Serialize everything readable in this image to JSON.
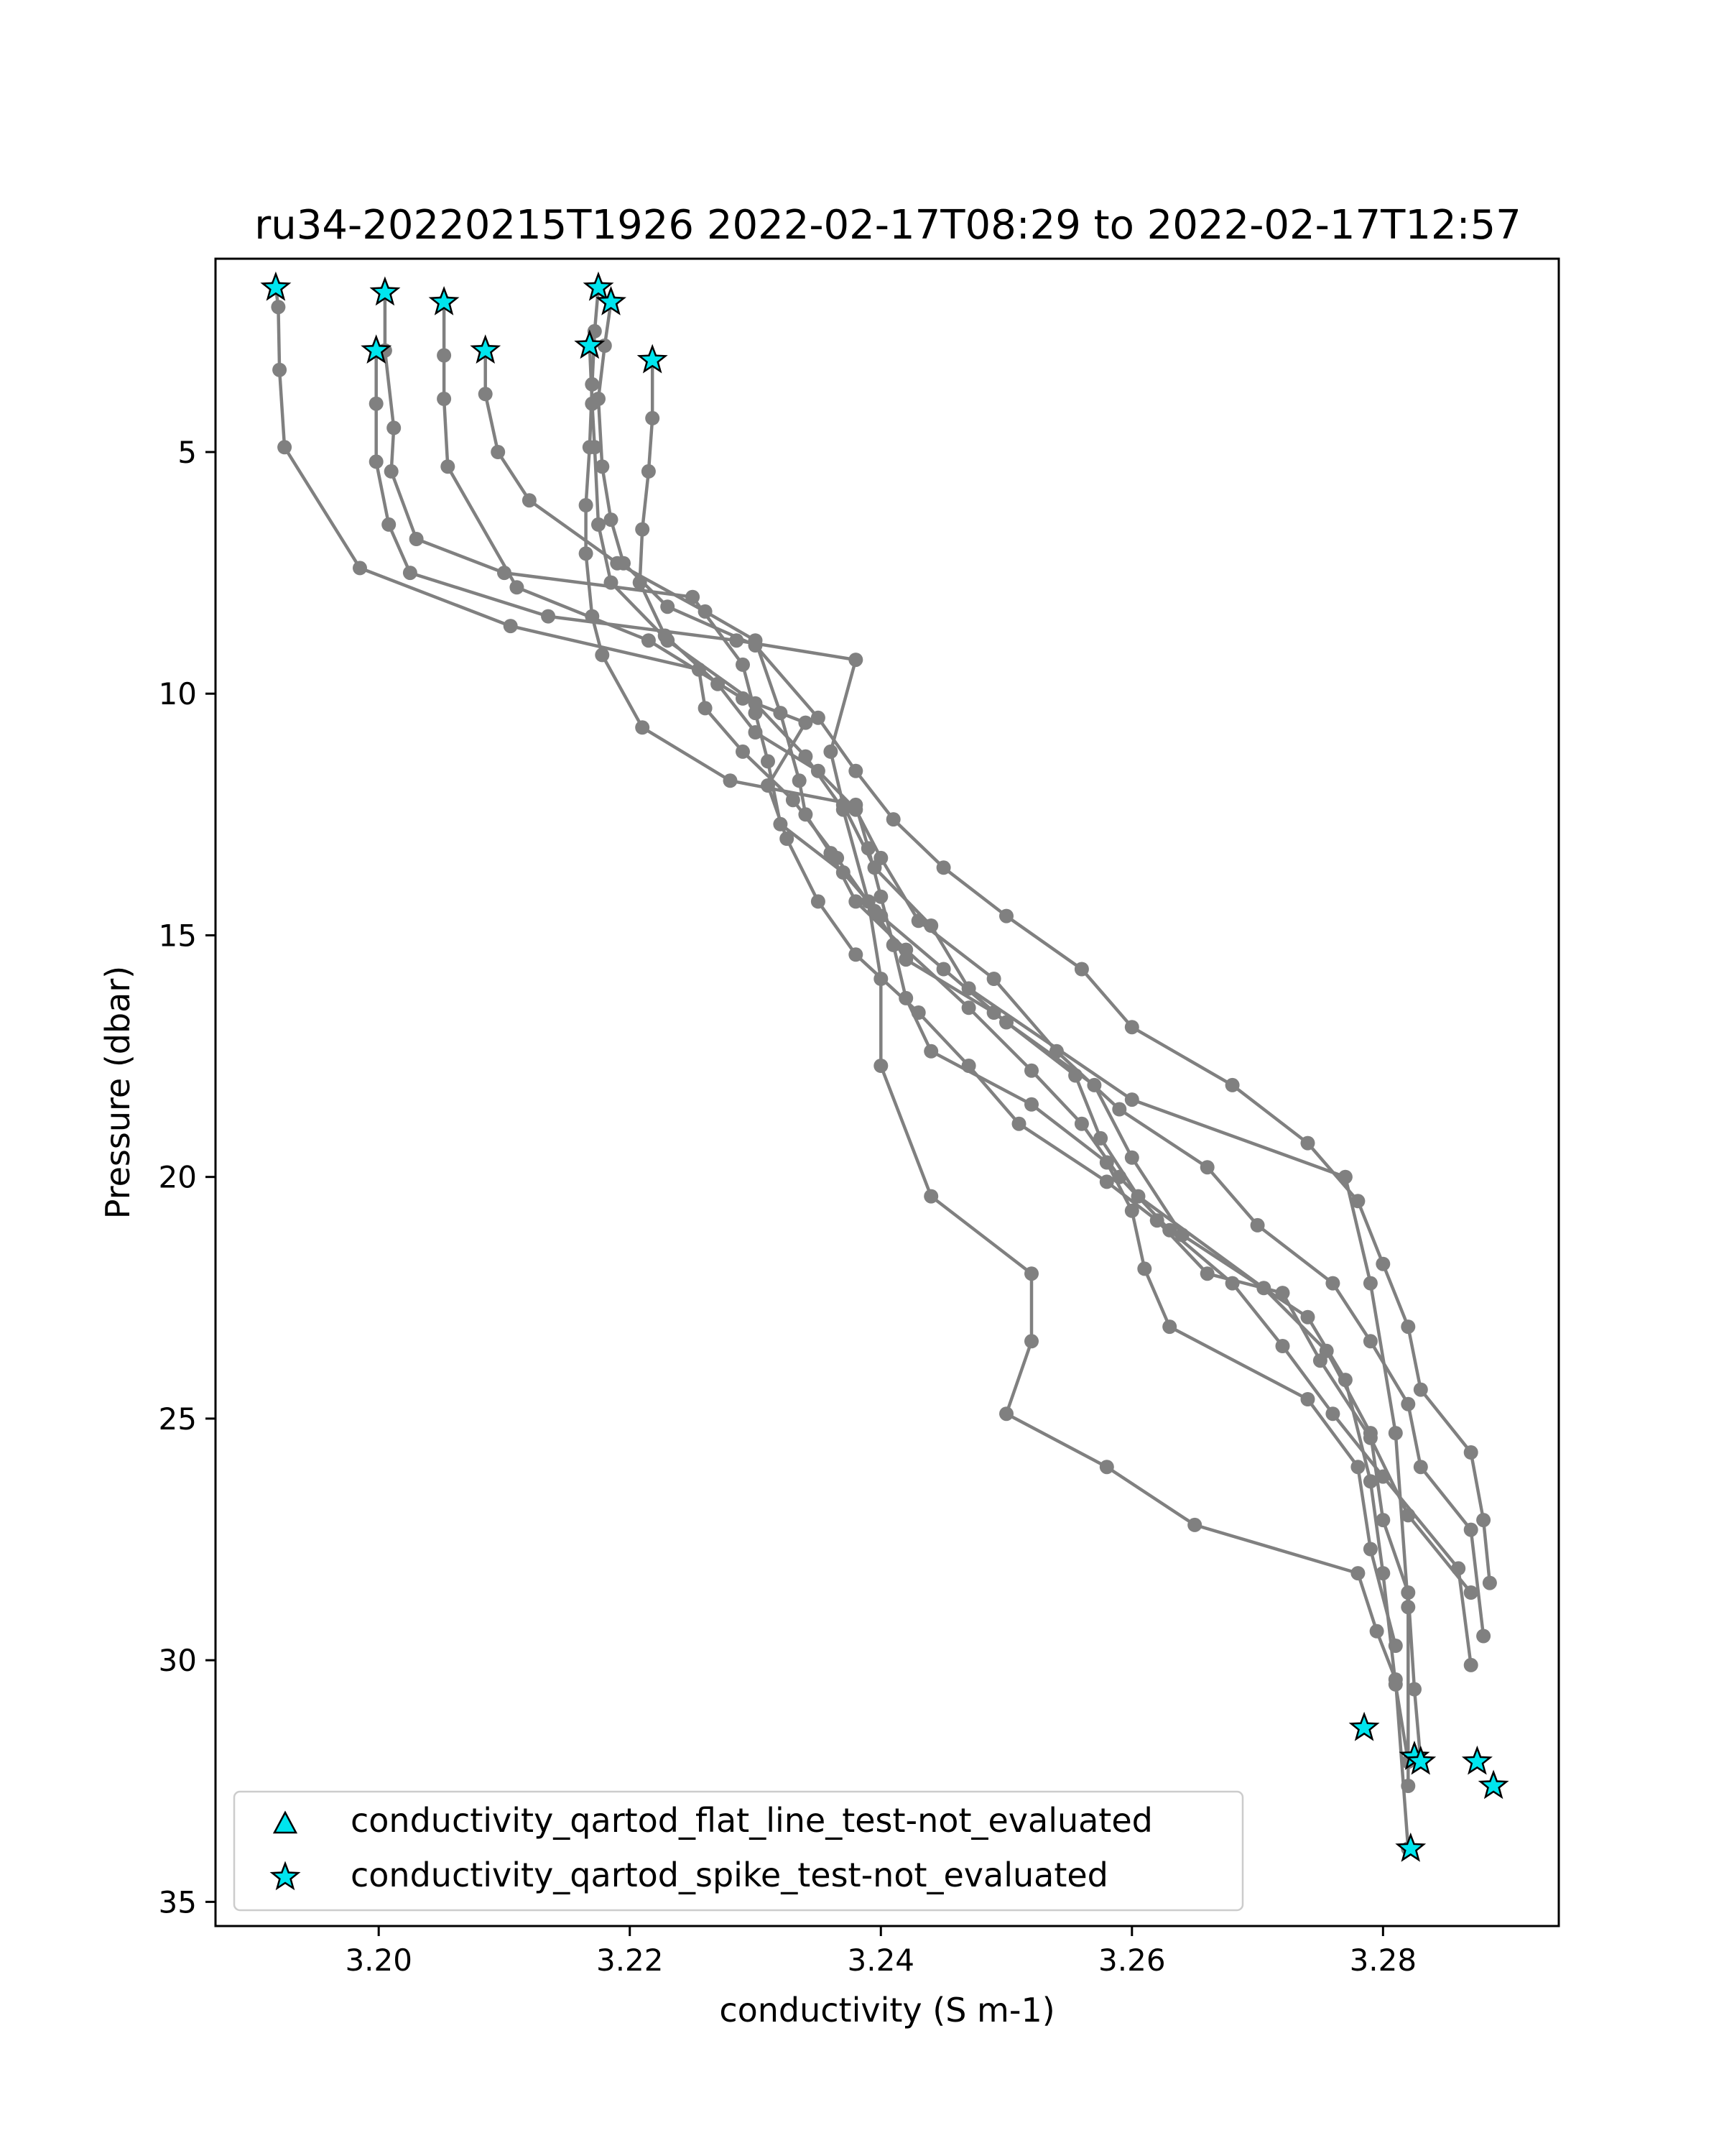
{
  "chart_data": {
    "type": "line",
    "title": "ru34-20220215T1926 2022-02-17T08:29 to 2022-02-17T12:57",
    "xlabel": "conductivity (S m-1)",
    "ylabel": "Pressure (dbar)",
    "xlim": [
      3.187,
      3.294
    ],
    "ylim": [
      35.5,
      1.0
    ],
    "y_inverted": true,
    "xticks": [
      3.2,
      3.22,
      3.24,
      3.26,
      3.28
    ],
    "xtick_labels": [
      "3.20",
      "3.22",
      "3.24",
      "3.26",
      "3.28"
    ],
    "yticks": [
      5,
      10,
      15,
      20,
      25,
      30,
      35
    ],
    "ytick_labels": [
      "5",
      "10",
      "15",
      "20",
      "25",
      "30",
      "35"
    ],
    "grid": false,
    "legend_position": "lower-left",
    "line_color": "#808080",
    "marker_color": "#00e5ee",
    "legend": [
      {
        "label": "conductivity_qartod_flat_line_test-not_evaluated",
        "marker": "triangle"
      },
      {
        "label": "conductivity_qartod_spike_test-not_evaluated",
        "marker": "star"
      }
    ],
    "series": [
      {
        "x": [
          3.1918,
          3.192,
          3.1921,
          3.1925,
          3.1985,
          3.2105,
          3.2255,
          3.226,
          3.229,
          3.233,
          3.2365,
          3.2395,
          3.242,
          3.249,
          3.2555,
          3.2575,
          3.2605,
          3.2705,
          3.2755,
          3.279,
          3.28,
          3.282,
          3.2825,
          3.283
        ],
        "y": [
          1.6,
          2.0,
          3.3,
          4.9,
          7.4,
          8.6,
          9.5,
          10.3,
          11.2,
          12.2,
          13.4,
          14.5,
          15.5,
          16.6,
          17.9,
          19.2,
          20.4,
          22.3,
          23.6,
          25.3,
          27.1,
          28.6,
          30.6,
          32.1
        ]
      },
      {
        "x": [
          3.2005,
          3.2005,
          3.2012,
          3.201,
          3.203,
          3.21,
          3.225,
          3.229,
          3.23,
          3.231,
          3.232,
          3.237,
          3.24,
          3.245,
          3.25,
          3.257,
          3.26,
          3.264,
          3.274,
          3.277,
          3.279,
          3.28,
          3.281,
          3.282
        ],
        "y": [
          1.7,
          2.9,
          4.5,
          5.4,
          6.8,
          7.5,
          8.0,
          9.4,
          10.4,
          11.4,
          12.7,
          13.7,
          14.6,
          15.7,
          16.8,
          18.1,
          19.6,
          21.2,
          22.9,
          24.2,
          26.3,
          28.2,
          30.5,
          32.1
        ]
      },
      {
        "x": [
          3.1998,
          3.1998,
          3.1998,
          3.2008,
          3.2025,
          3.2135,
          3.2285,
          3.238,
          3.236,
          3.237,
          3.2395,
          3.244,
          3.247,
          3.26,
          3.277,
          3.279,
          3.281,
          3.282,
          3.282
        ],
        "y": [
          2.9,
          4.0,
          5.2,
          6.5,
          7.5,
          8.4,
          8.9,
          9.3,
          11.2,
          12.3,
          13.6,
          14.8,
          16.1,
          18.4,
          20.0,
          22.2,
          25.3,
          28.9,
          32.6
        ]
      },
      {
        "x": [
          3.2052,
          3.2052,
          3.2052,
          3.2055,
          3.211,
          3.2215,
          3.229,
          3.234,
          3.231,
          3.2325,
          3.235,
          3.238,
          3.243,
          3.247,
          3.251,
          3.258,
          3.262,
          3.266,
          3.272,
          3.275,
          3.279,
          3.282,
          3.287
        ],
        "y": [
          1.9,
          3.0,
          3.9,
          5.3,
          7.8,
          8.9,
          10.1,
          10.6,
          11.9,
          13.0,
          14.3,
          15.4,
          16.6,
          17.7,
          18.9,
          20.1,
          20.9,
          22.0,
          22.4,
          23.8,
          25.4,
          27.0,
          28.6
        ]
      },
      {
        "x": [
          3.2085,
          3.2085,
          3.2095,
          3.212,
          3.219,
          3.226,
          3.23,
          3.232,
          3.2335,
          3.234,
          3.236,
          3.238,
          3.242,
          3.247,
          3.252,
          3.256,
          3.259,
          3.263,
          3.268,
          3.272,
          3.276,
          3.28,
          3.286,
          3.287
        ],
        "y": [
          2.9,
          3.8,
          5.0,
          6.0,
          7.3,
          8.3,
          8.9,
          10.4,
          11.8,
          12.5,
          13.3,
          14.3,
          15.3,
          16.5,
          17.8,
          18.9,
          20.0,
          21.1,
          22.2,
          23.5,
          24.9,
          26.2,
          28.1,
          30.1
        ]
      },
      {
        "x": [
          3.2175,
          3.2172,
          3.217,
          3.2168,
          3.2165,
          3.2165,
          3.217,
          3.2178,
          3.221,
          3.228,
          3.238,
          3.239,
          3.24,
          3.241,
          3.242,
          3.244,
          3.252,
          3.258,
          3.26,
          3.261,
          3.263,
          3.274,
          3.278,
          3.279,
          3.281
        ],
        "y": [
          1.6,
          2.5,
          3.6,
          4.9,
          6.1,
          7.1,
          8.4,
          9.2,
          10.7,
          11.8,
          12.3,
          13.2,
          14.2,
          15.2,
          16.3,
          17.4,
          18.5,
          19.7,
          20.7,
          21.9,
          23.1,
          24.6,
          26.0,
          27.7,
          29.7
        ]
      },
      {
        "x": [
          3.2185,
          3.218,
          3.2175,
          3.2178,
          3.2185,
          3.2195,
          3.223,
          3.23,
          3.235,
          3.238,
          3.241,
          3.245,
          3.25,
          3.256,
          3.26,
          3.268,
          3.274,
          3.278,
          3.28,
          3.282,
          3.283,
          3.287,
          3.288,
          3.2885
        ],
        "y": [
          1.9,
          2.8,
          3.9,
          5.3,
          6.4,
          7.3,
          8.2,
          9.0,
          10.5,
          11.6,
          12.6,
          13.6,
          14.6,
          15.7,
          16.9,
          18.1,
          19.3,
          20.5,
          21.8,
          23.1,
          24.4,
          25.7,
          27.1,
          28.4
        ]
      },
      {
        "x": [
          3.2168,
          3.217,
          3.2172,
          3.2175,
          3.2185,
          3.223,
          3.23,
          3.234,
          3.237,
          3.239,
          3.24,
          3.24,
          3.244,
          3.252,
          3.252,
          3.25,
          3.258,
          3.265,
          3.278,
          3.2795,
          3.281,
          3.282
        ],
        "y": [
          2.8,
          4.0,
          4.9,
          6.5,
          7.7,
          8.9,
          10.2,
          11.3,
          12.4,
          14.3,
          15.9,
          17.7,
          20.4,
          22.0,
          23.4,
          24.9,
          26.0,
          27.2,
          28.2,
          29.4,
          30.4,
          33.9
        ]
      },
      {
        "x": [
          3.2218,
          3.2218,
          3.2215,
          3.221,
          3.2208,
          3.2228,
          3.227,
          3.23,
          3.235,
          3.238,
          3.24,
          3.243,
          3.249,
          3.254,
          3.259,
          3.266,
          3.27,
          3.276,
          3.279,
          3.282,
          3.283,
          3.287,
          3.288
        ],
        "y": [
          3.1,
          4.3,
          5.4,
          6.6,
          7.7,
          8.8,
          9.8,
          10.8,
          11.6,
          12.4,
          13.4,
          14.7,
          15.9,
          17.4,
          18.6,
          19.8,
          21.0,
          22.2,
          23.4,
          24.7,
          26.0,
          27.3,
          29.5
        ]
      }
    ],
    "points": {
      "x": [
        3.1918,
        3.2005,
        3.2052,
        3.2175,
        3.2185,
        3.1998,
        3.2085,
        3.2168,
        3.2218,
        3.2785,
        3.2825,
        3.283,
        3.2875,
        3.2888,
        3.2822
      ],
      "y": [
        1.6,
        1.7,
        1.9,
        1.6,
        1.9,
        2.9,
        2.9,
        2.8,
        3.1,
        31.4,
        32.0,
        32.1,
        32.1,
        32.6,
        33.9
      ]
    }
  }
}
